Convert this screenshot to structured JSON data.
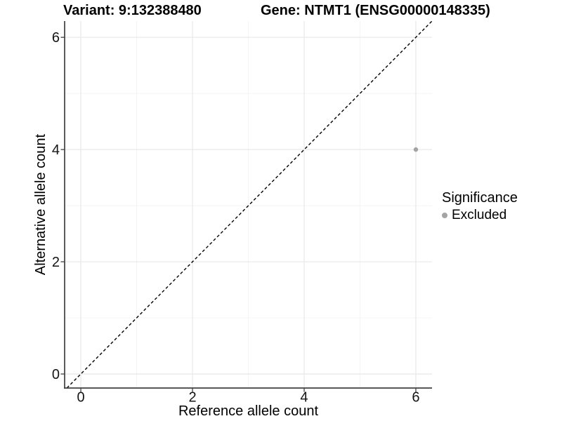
{
  "figure": {
    "title_variant": "Variant: 9:132388480",
    "title_gene": "Gene: NTMT1 (ENSG00000148335)"
  },
  "axes": {
    "x_label": "Reference allele count",
    "y_label": "Alternative allele count"
  },
  "legend": {
    "title": "Significance",
    "items": [
      {
        "label": "Excluded",
        "color": "#a4a4a4"
      }
    ]
  },
  "chart_data": {
    "type": "scatter",
    "title": "Variant: 9:132388480    Gene: NTMT1 (ENSG00000148335)",
    "xlabel": "Reference allele count",
    "ylabel": "Alternative allele count",
    "xlim": [
      -0.29,
      6.29
    ],
    "ylim": [
      -0.25,
      6.29
    ],
    "x_ticks": [
      0,
      2,
      4,
      6
    ],
    "y_ticks": [
      0,
      2,
      4,
      6
    ],
    "x_tick_labels": [
      "0",
      "2",
      "4",
      "6"
    ],
    "y_tick_labels": [
      "0",
      "2",
      "4",
      "6"
    ],
    "x_minor_ticks": [
      1,
      3,
      5
    ],
    "y_minor_ticks": [
      1,
      3,
      5
    ],
    "grid": true,
    "legend_position": "right",
    "legend_title": "Significance",
    "series": [
      {
        "name": "Excluded",
        "color": "#a4a4a4",
        "points": [
          {
            "x": 6,
            "y": 4
          }
        ]
      }
    ],
    "reference_line": {
      "type": "identity",
      "equation": "y = x",
      "style": "dashed",
      "color": "#000000"
    }
  },
  "colors": {
    "point": "#a4a4a4",
    "grid_major": "#e8e8e8",
    "grid_minor": "#f4f4f4",
    "axis_line": "#404040",
    "tick_mark": "#404040",
    "dashed_line": "#000000"
  }
}
